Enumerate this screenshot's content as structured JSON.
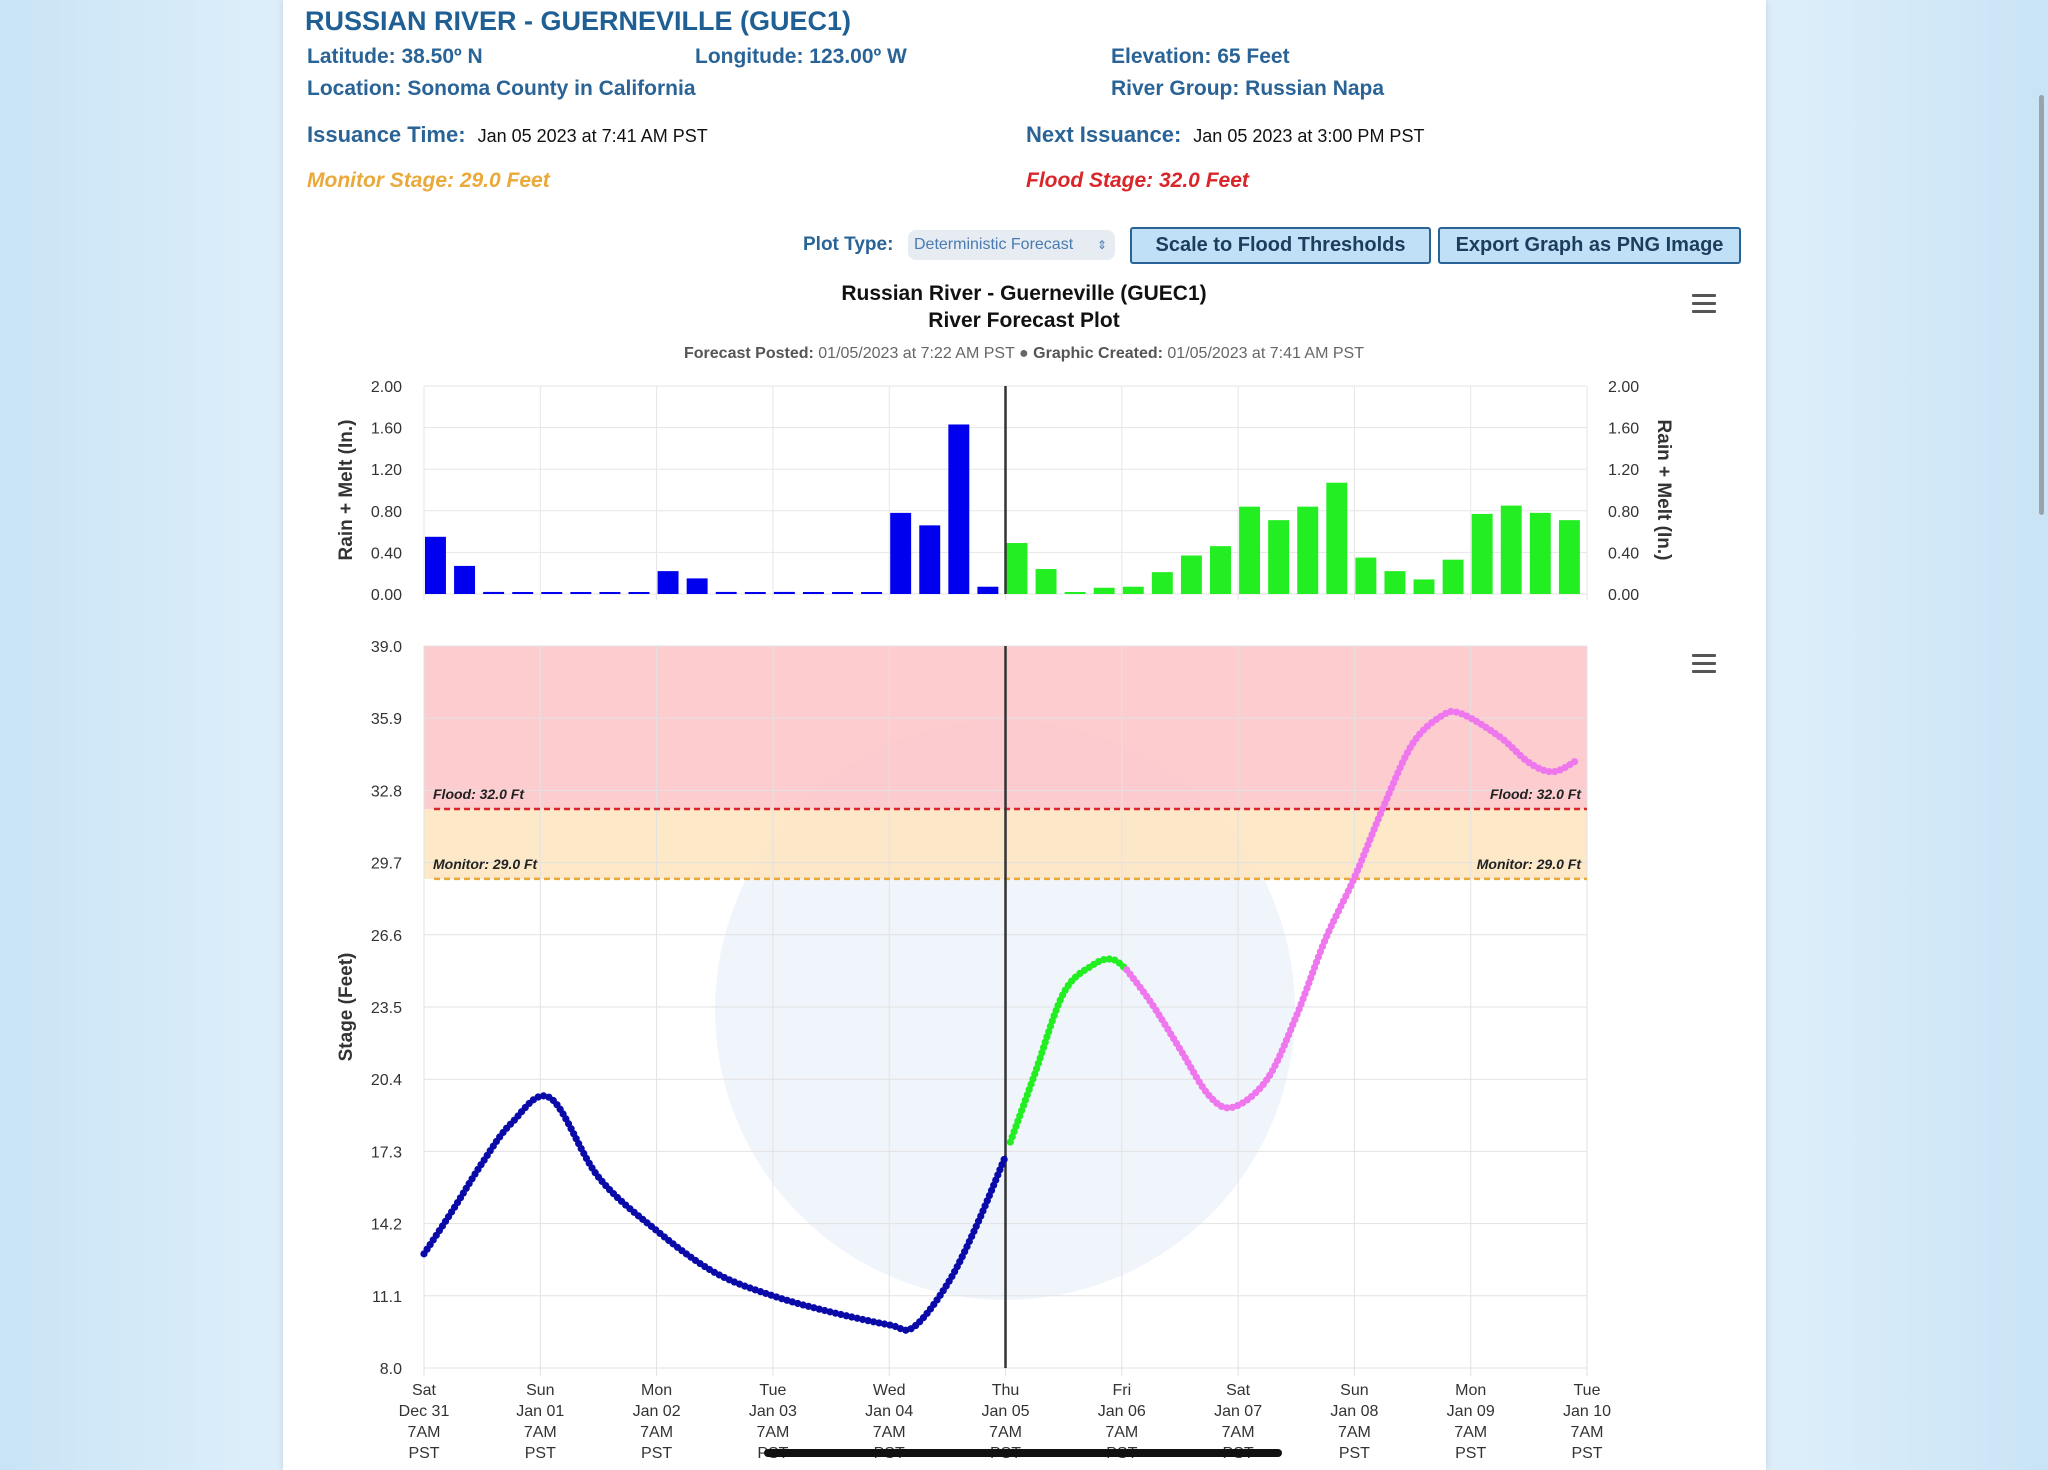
{
  "header": {
    "title": "RUSSIAN RIVER - GUERNEVILLE (GUEC1)",
    "latitude": "Latitude: 38.50º N",
    "longitude": "Longitude: 123.00º W",
    "elevation": "Elevation: 65 Feet",
    "location": "Location: Sonoma County in California",
    "river_group": "River Group: Russian Napa",
    "issuance_label": "Issuance Time:",
    "issuance_value": "Jan 05 2023 at 7:41 AM PST",
    "next_label": "Next Issuance:",
    "next_value": "Jan 05 2023 at 3:00 PM PST",
    "monitor_stage": "Monitor Stage: 29.0 Feet",
    "flood_stage": "Flood Stage: 32.0 Feet"
  },
  "controls": {
    "plot_type_label": "Plot Type:",
    "plot_type_value": "Deterministic Forecast",
    "scale_button": "Scale to Flood Thresholds",
    "export_button": "Export Graph as PNG Image"
  },
  "colors": {
    "observed": "#0000ee",
    "observed_line": "#0a0aa8",
    "forecast_green": "#22ee22",
    "forecast_magenta": "#ee77ee",
    "flood": "#d8262a",
    "monitor": "#eaa93a",
    "flood_band": "#fcc6ca",
    "monitor_band": "#fde6c2"
  },
  "chart_data": [
    {
      "type": "bar",
      "title": "Russian River - Guerneville (GUEC1)",
      "subtitle": "River Forecast Plot",
      "posted_label": "Forecast Posted:",
      "posted_value": "01/05/2023 at 7:22 AM PST",
      "created_label": "Graphic Created:",
      "created_value": "01/05/2023 at 7:41 AM PST",
      "ylabel": "Rain + Melt (In.)",
      "ylim": [
        0,
        2
      ],
      "yticks": [
        "0.00",
        "0.40",
        "0.80",
        "1.20",
        "1.60",
        "2.00"
      ],
      "grid": true,
      "series": [
        {
          "kind": "observed",
          "color": "#0000ee",
          "points": [
            [
              "2022-12-31T07:00",
              0.55
            ],
            [
              "2022-12-31T13:00",
              0.27
            ],
            [
              "2022-12-31T19:00",
              0.02
            ],
            [
              "2023-01-01T01:00",
              0
            ],
            [
              "2023-01-01T07:00",
              0
            ],
            [
              "2023-01-01T13:00",
              0
            ],
            [
              "2023-01-01T19:00",
              0
            ],
            [
              "2023-01-02T01:00",
              0
            ],
            [
              "2023-01-02T07:00",
              0.22
            ],
            [
              "2023-01-02T13:00",
              0.15
            ],
            [
              "2023-01-02T19:00",
              0.02
            ],
            [
              "2023-01-03T01:00",
              0
            ],
            [
              "2023-01-03T07:00",
              0.02
            ],
            [
              "2023-01-03T13:00",
              0
            ],
            [
              "2023-01-03T19:00",
              0
            ],
            [
              "2023-01-04T01:00",
              0
            ],
            [
              "2023-01-04T07:00",
              0.78
            ],
            [
              "2023-01-04T13:00",
              0.66
            ],
            [
              "2023-01-04T19:00",
              1.63
            ],
            [
              "2023-01-05T01:00",
              0.07
            ]
          ]
        },
        {
          "kind": "forecast",
          "color": "#22ee22",
          "points": [
            [
              "2023-01-05T07:00",
              0.49
            ],
            [
              "2023-01-05T13:00",
              0.24
            ],
            [
              "2023-01-05T19:00",
              0.01
            ],
            [
              "2023-01-06T01:00",
              0.06
            ],
            [
              "2023-01-06T07:00",
              0.07
            ],
            [
              "2023-01-06T13:00",
              0.21
            ],
            [
              "2023-01-06T19:00",
              0.37
            ],
            [
              "2023-01-07T01:00",
              0.46
            ],
            [
              "2023-01-07T07:00",
              0.84
            ],
            [
              "2023-01-07T13:00",
              0.71
            ],
            [
              "2023-01-07T19:00",
              0.84
            ],
            [
              "2023-01-08T01:00",
              1.07
            ],
            [
              "2023-01-08T07:00",
              0.35
            ],
            [
              "2023-01-08T13:00",
              0.22
            ],
            [
              "2023-01-08T19:00",
              0.14
            ],
            [
              "2023-01-09T01:00",
              0.33
            ],
            [
              "2023-01-09T07:00",
              0.77
            ],
            [
              "2023-01-09T13:00",
              0.85
            ],
            [
              "2023-01-09T19:00",
              0.78
            ],
            [
              "2023-01-10T01:00",
              0.71
            ]
          ]
        }
      ]
    },
    {
      "type": "line",
      "ylabel": "Stage (Feet)",
      "ylim": [
        8.0,
        39.0
      ],
      "yticks": [
        "8.0",
        "11.1",
        "14.2",
        "17.3",
        "20.4",
        "23.5",
        "26.6",
        "29.7",
        "32.8",
        "35.9",
        "39.0"
      ],
      "xlim": [
        "2022-12-31T07:00",
        "2023-01-10T07:00"
      ],
      "xticks": [
        [
          "Sat",
          "Dec 31",
          "7AM",
          "PST"
        ],
        [
          "Sun",
          "Jan 01",
          "7AM",
          "PST"
        ],
        [
          "Mon",
          "Jan 02",
          "7AM",
          "PST"
        ],
        [
          "Tue",
          "Jan 03",
          "7AM",
          "PST"
        ],
        [
          "Wed",
          "Jan 04",
          "7AM",
          "PST"
        ],
        [
          "Thu",
          "Jan 05",
          "7AM",
          "PST"
        ],
        [
          "Fri",
          "Jan 06",
          "7AM",
          "PST"
        ],
        [
          "Sat",
          "Jan 07",
          "7AM",
          "PST"
        ],
        [
          "Sun",
          "Jan 08",
          "7AM",
          "PST"
        ],
        [
          "Mon",
          "Jan 09",
          "7AM",
          "PST"
        ],
        [
          "Tue",
          "Jan 10",
          "7AM",
          "PST"
        ]
      ],
      "grid": true,
      "now": "2023-01-05T07:00",
      "thresholds": [
        {
          "name": "Flood",
          "value": 32.0,
          "label": "Flood: 32.0 Ft",
          "color": "#d8262a"
        },
        {
          "name": "Monitor",
          "value": 29.0,
          "label": "Monitor: 29.0 Ft",
          "color": "#eaa93a"
        }
      ],
      "series": [
        {
          "kind": "observed",
          "color": "#0a0aa8",
          "points": [
            [
              "2022-12-31T07:00",
              12.9
            ],
            [
              "2022-12-31T13:00",
              14.8
            ],
            [
              "2022-12-31T19:00",
              16.8
            ],
            [
              "2023-01-01T01:00",
              18.5
            ],
            [
              "2023-01-01T09:00",
              19.6
            ],
            [
              "2023-01-01T19:00",
              16.2
            ],
            [
              "2023-01-02T07:00",
              13.9
            ],
            [
              "2023-01-02T19:00",
              12.1
            ],
            [
              "2023-01-03T07:00",
              11.1
            ],
            [
              "2023-01-03T19:00",
              10.4
            ],
            [
              "2023-01-04T07:00",
              9.85
            ],
            [
              "2023-01-04T12:00",
              9.75
            ],
            [
              "2023-01-04T19:00",
              11.6
            ],
            [
              "2023-01-05T01:00",
              14.1
            ],
            [
              "2023-01-05T07:00",
              17.1
            ]
          ]
        },
        {
          "kind": "forecast",
          "color": "#22ee22",
          "points": [
            [
              "2023-01-05T08:00",
              17.7
            ],
            [
              "2023-01-05T13:00",
              20.6
            ],
            [
              "2023-01-05T19:00",
              24.1
            ],
            [
              "2023-01-06T01:00",
              25.3
            ],
            [
              "2023-01-06T05:00",
              25.55
            ],
            [
              "2023-01-06T08:00",
              25.1
            ]
          ]
        },
        {
          "kind": "forecast",
          "color": "#ee77ee",
          "points": [
            [
              "2023-01-06T08:00",
              25.1
            ],
            [
              "2023-01-06T13:00",
              23.7
            ],
            [
              "2023-01-06T19:00",
              21.7
            ],
            [
              "2023-01-07T01:00",
              19.7
            ],
            [
              "2023-01-07T06:00",
              19.2
            ],
            [
              "2023-01-07T13:00",
              20.4
            ],
            [
              "2023-01-07T19:00",
              23.1
            ],
            [
              "2023-01-08T01:00",
              26.4
            ],
            [
              "2023-01-08T07:00",
              29.05
            ],
            [
              "2023-01-08T13:00",
              32.1
            ],
            [
              "2023-01-08T19:00",
              34.8
            ],
            [
              "2023-01-09T01:00",
              36.0
            ],
            [
              "2023-01-09T05:00",
              36.1
            ],
            [
              "2023-01-09T13:00",
              35.1
            ],
            [
              "2023-01-09T19:00",
              34.0
            ],
            [
              "2023-01-10T00:00",
              33.6
            ],
            [
              "2023-01-10T05:00",
              34.1
            ]
          ]
        }
      ]
    }
  ]
}
